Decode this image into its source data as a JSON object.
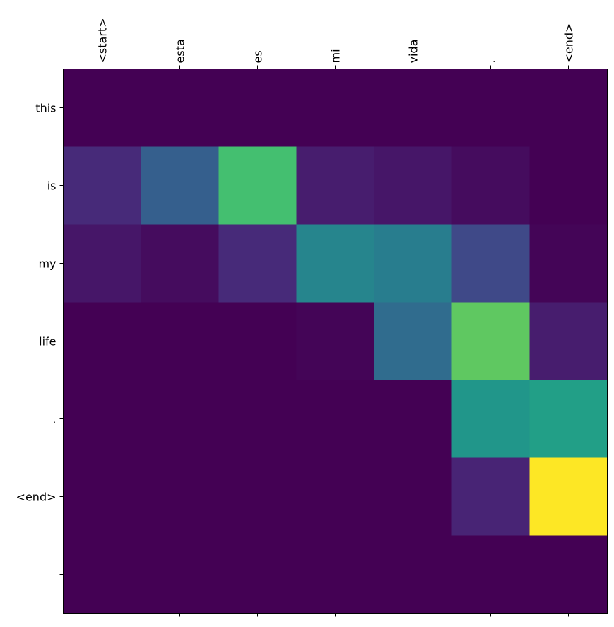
{
  "chart_data": {
    "type": "heatmap",
    "colormap": "viridis",
    "x_tick_position": "top",
    "grid": false,
    "x_categories": [
      "<start>",
      "esta",
      "es",
      "mi",
      "vida",
      ".",
      "<end>"
    ],
    "y_categories": [
      "this",
      "is",
      "my",
      "life",
      ".",
      "<end>",
      ""
    ],
    "values": [
      [
        0.0,
        0.0,
        0.0,
        0.0,
        0.0,
        0.0,
        0.0
      ],
      [
        0.12,
        0.3,
        0.7,
        0.08,
        0.06,
        0.03,
        0.0
      ],
      [
        0.06,
        0.03,
        0.12,
        0.45,
        0.42,
        0.22,
        0.01
      ],
      [
        0.0,
        0.0,
        0.0,
        0.01,
        0.35,
        0.75,
        0.08
      ],
      [
        0.0,
        0.0,
        0.0,
        0.0,
        0.0,
        0.52,
        0.56
      ],
      [
        0.0,
        0.0,
        0.0,
        0.0,
        0.0,
        0.1,
        1.0
      ],
      [
        0.0,
        0.0,
        0.0,
        0.0,
        0.0,
        0.0,
        0.0
      ]
    ],
    "vmin": 0,
    "vmax": 1
  }
}
